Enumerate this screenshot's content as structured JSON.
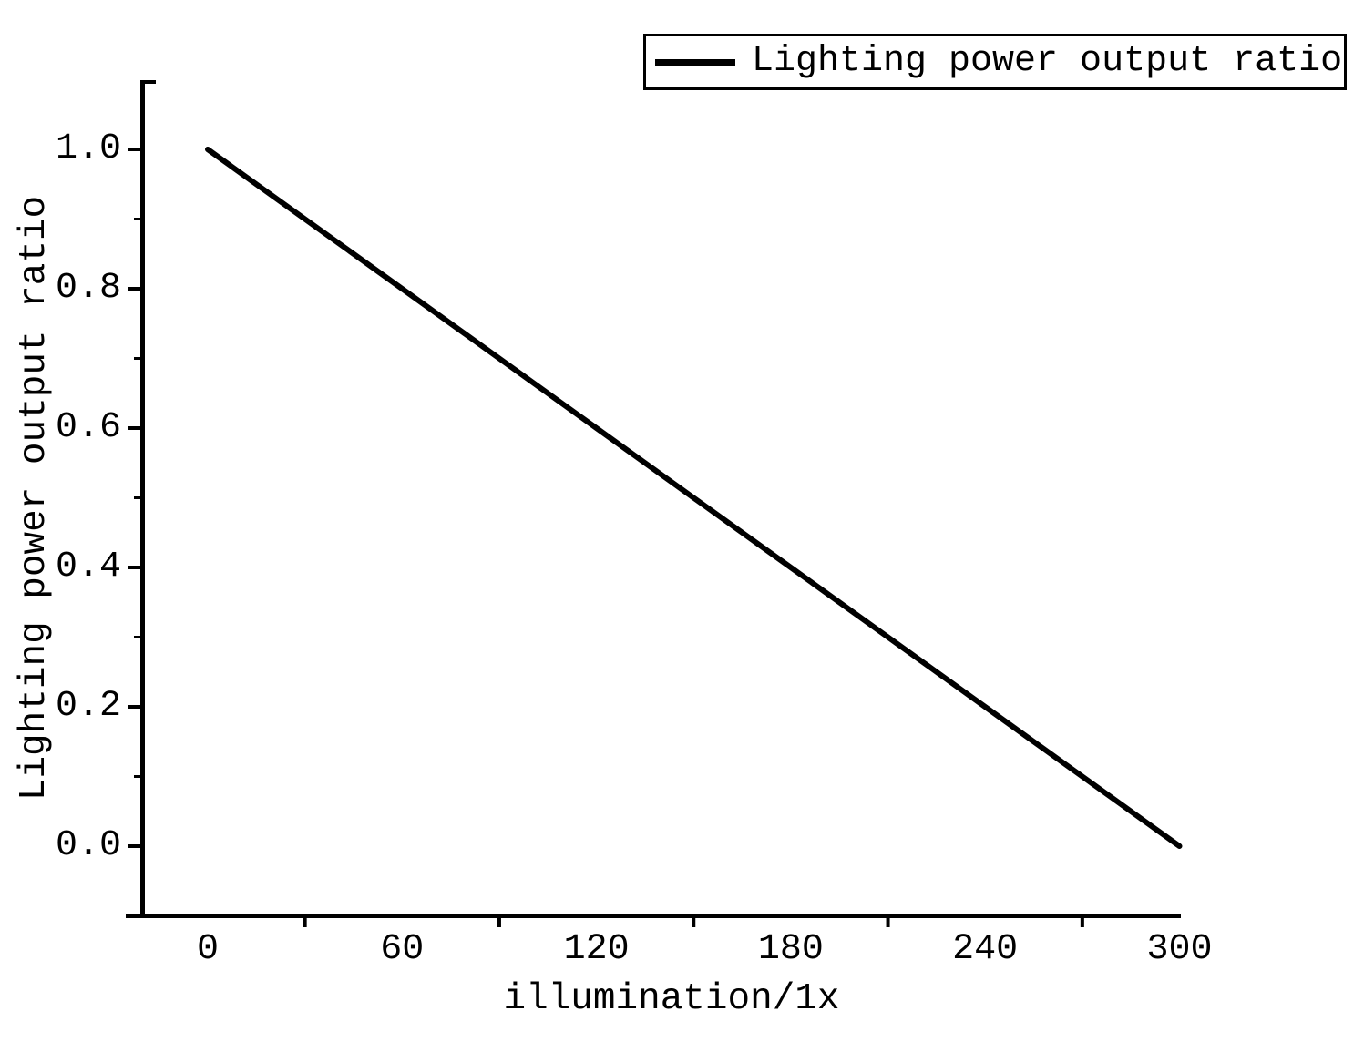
{
  "colors": {
    "foreground": "#000000",
    "background": "#ffffff"
  },
  "chart_data": {
    "type": "line",
    "title": "",
    "xlabel": "illumination/1x",
    "ylabel": "Lighting power output ratio",
    "legend_label": "Lighting power output ratio",
    "legend_position": "top-right",
    "grid": false,
    "xlim": [
      -20,
      300
    ],
    "ylim": [
      -0.1,
      1.1
    ],
    "x_ticks": {
      "values": [
        0,
        60,
        120,
        180,
        240,
        300
      ],
      "labels": [
        "0",
        "60",
        "120",
        "180",
        "240",
        "300"
      ],
      "minor_values": [
        30,
        90,
        150,
        210,
        270
      ]
    },
    "y_ticks": {
      "values": [
        0.0,
        0.2,
        0.4,
        0.6,
        0.8,
        1.0
      ],
      "labels": [
        "0.0",
        "0.2",
        "0.4",
        "0.6",
        "0.8",
        "1.0"
      ],
      "minor_values": [
        0.1,
        0.3,
        0.5,
        0.7,
        0.9
      ]
    },
    "series": [
      {
        "name": "Lighting power output ratio",
        "color": "#000000",
        "line_width": 6,
        "x": [
          0,
          60,
          120,
          180,
          240,
          300
        ],
        "y": [
          1.0,
          0.8,
          0.6,
          0.4,
          0.2,
          0.0
        ]
      }
    ]
  }
}
